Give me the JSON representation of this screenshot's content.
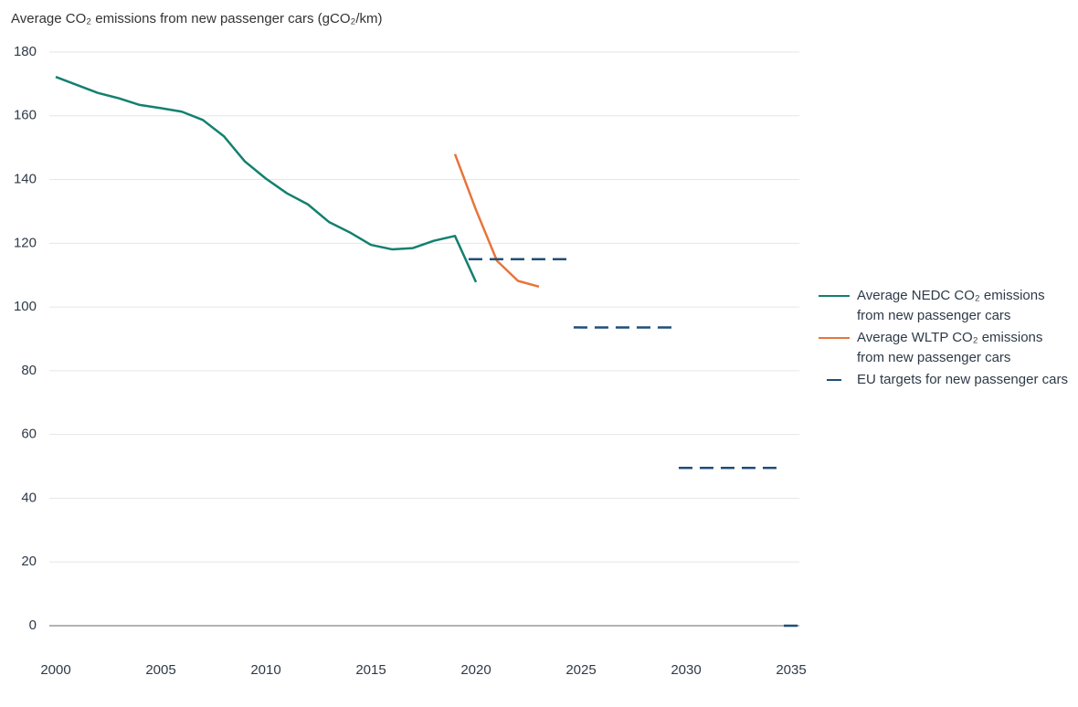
{
  "chart_data": {
    "type": "line",
    "title": "Average CO₂ emissions from new passenger cars (gCO₂/km)",
    "xlim": [
      2000,
      2035
    ],
    "xticks": [
      2000,
      2005,
      2010,
      2015,
      2020,
      2025,
      2030,
      2035
    ],
    "ylim": [
      0,
      180
    ],
    "yticks": [
      0,
      20,
      40,
      60,
      80,
      100,
      120,
      140,
      160,
      180
    ],
    "grid": true,
    "legend": "right",
    "series": [
      {
        "name": "Average NEDC CO₂ emissions from new passenger cars",
        "color": "#13806f",
        "line_style": "solid",
        "x": [
          2000,
          2001,
          2002,
          2003,
          2004,
          2005,
          2006,
          2007,
          2008,
          2009,
          2010,
          2011,
          2012,
          2013,
          2014,
          2015,
          2016,
          2017,
          2018,
          2019,
          2020
        ],
        "values": [
          172.2,
          169.7,
          167.2,
          165.5,
          163.4,
          162.4,
          161.3,
          158.7,
          153.6,
          145.7,
          140.3,
          135.7,
          132.2,
          126.7,
          123.4,
          119.5,
          118.1,
          118.5,
          120.8,
          122.3,
          107.8
        ]
      },
      {
        "name": "Average WLTP CO₂ emissions from new passenger cars",
        "color": "#e8743b",
        "line_style": "solid",
        "x": [
          2019,
          2020,
          2021,
          2022,
          2023
        ],
        "values": [
          148,
          130.5,
          114.5,
          108.2,
          106.4
        ]
      },
      {
        "name": "EU targets for new passenger cars",
        "color": "#1f4e79",
        "line_style": "dashed",
        "x": [
          2020,
          2025,
          2030,
          2035
        ],
        "values": [
          115,
          93.6,
          49.5,
          0
        ]
      }
    ]
  }
}
